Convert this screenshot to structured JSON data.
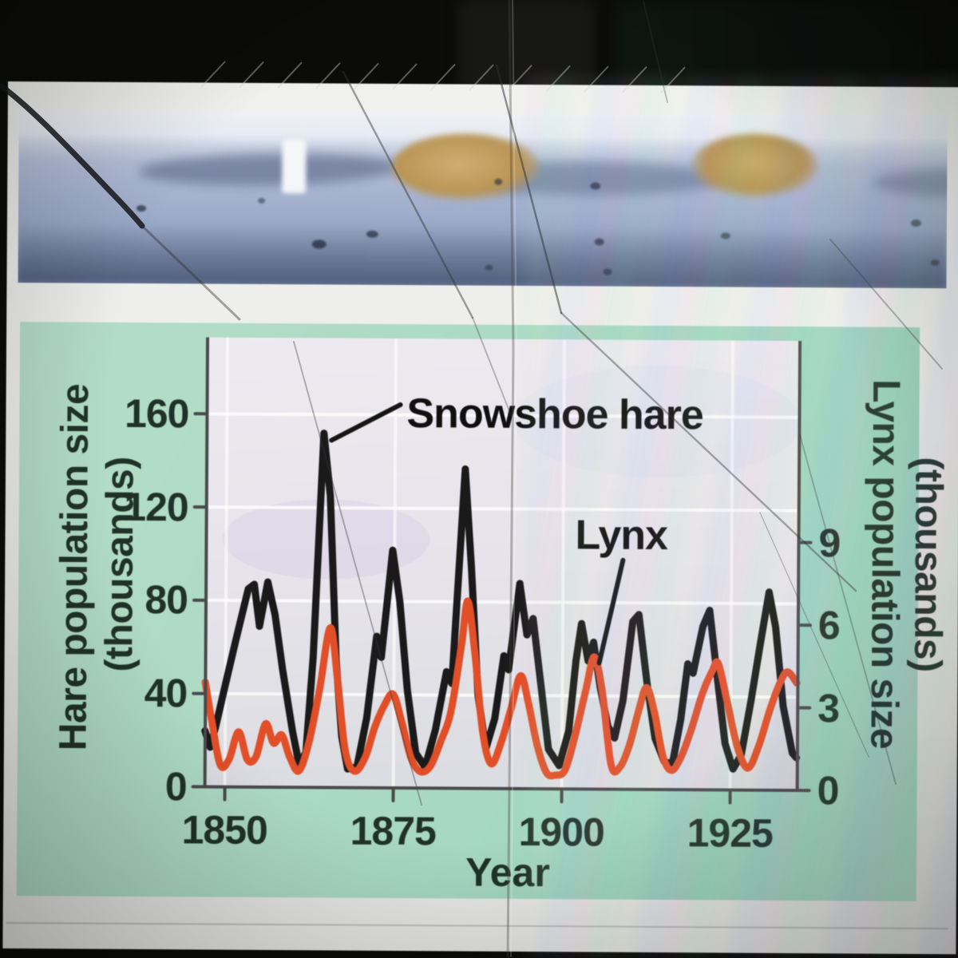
{
  "colors": {
    "background_black": "#0b0b09",
    "page_white": "#f0f1ef",
    "panel_green": "#abdac5",
    "plot_background": "#e7e5eb",
    "grid_white": "#ffffff",
    "axis_line": "#4a4a4c",
    "axis_text_green": "#203228",
    "hare_line_black": "#1a1a1a",
    "lynx_line_orange": "#e14f28",
    "photo_snow_blue": "#a9b6d1"
  },
  "chart_data": {
    "type": "line",
    "title": "",
    "xlabel": "Year",
    "ylabel_left_line1": "Hare population size",
    "ylabel_left_line2": "(thousands)",
    "ylabel_right_line1": "Lynx population size",
    "ylabel_right_line2": "(thousands)",
    "grid": true,
    "legend_position": "annotated-on-plot",
    "x_range": [
      1847,
      1935
    ],
    "x_ticks": [
      1850,
      1875,
      1900,
      1925
    ],
    "y_left_range": [
      0,
      192
    ],
    "y_left_ticks": [
      0,
      40,
      80,
      120,
      160
    ],
    "y_right_range": [
      0,
      16.3
    ],
    "y_right_ticks": [
      0,
      3,
      6,
      9
    ],
    "series": [
      {
        "name": "Snowshoe hare",
        "axis": "left",
        "units": "thousands of hares",
        "color": "#1a1a1a",
        "points": [
          [
            1847.0,
            24
          ],
          [
            1847.8,
            17
          ],
          [
            1848.6,
            26
          ],
          [
            1850.0,
            44
          ],
          [
            1851.5,
            63
          ],
          [
            1853.3,
            85
          ],
          [
            1854.2,
            87
          ],
          [
            1855.0,
            69
          ],
          [
            1856.2,
            88
          ],
          [
            1857.3,
            74
          ],
          [
            1858.5,
            50
          ],
          [
            1860.0,
            24
          ],
          [
            1861.0,
            10
          ],
          [
            1862.0,
            15
          ],
          [
            1863.0,
            56
          ],
          [
            1864.4,
            152
          ],
          [
            1865.4,
            125
          ],
          [
            1866.4,
            55
          ],
          [
            1867.3,
            22
          ],
          [
            1868.2,
            8
          ],
          [
            1869.6,
            9
          ],
          [
            1871.0,
            30
          ],
          [
            1872.4,
            65
          ],
          [
            1873.1,
            56
          ],
          [
            1874.7,
            102
          ],
          [
            1875.8,
            80
          ],
          [
            1877.0,
            42
          ],
          [
            1878.3,
            15
          ],
          [
            1879.7,
            9
          ],
          [
            1881.2,
            25
          ],
          [
            1882.8,
            50
          ],
          [
            1883.6,
            45
          ],
          [
            1885.4,
            137
          ],
          [
            1886.4,
            95
          ],
          [
            1887.5,
            40
          ],
          [
            1888.7,
            17
          ],
          [
            1890.0,
            30
          ],
          [
            1891.3,
            57
          ],
          [
            1892.0,
            51
          ],
          [
            1893.6,
            88
          ],
          [
            1894.7,
            66
          ],
          [
            1895.6,
            73
          ],
          [
            1896.8,
            45
          ],
          [
            1898.0,
            17
          ],
          [
            1899.6,
            10
          ],
          [
            1901.0,
            25
          ],
          [
            1902.0,
            55
          ],
          [
            1902.8,
            71
          ],
          [
            1903.8,
            55
          ],
          [
            1904.6,
            63
          ],
          [
            1905.6,
            44
          ],
          [
            1906.8,
            27
          ],
          [
            1907.8,
            22
          ],
          [
            1909.0,
            38
          ],
          [
            1910.4,
            72
          ],
          [
            1911.3,
            75
          ],
          [
            1912.6,
            45
          ],
          [
            1913.8,
            22
          ],
          [
            1915.2,
            12
          ],
          [
            1916.4,
            11
          ],
          [
            1917.6,
            30
          ],
          [
            1918.6,
            54
          ],
          [
            1919.4,
            50
          ],
          [
            1920.8,
            70
          ],
          [
            1921.8,
            77
          ],
          [
            1923.0,
            48
          ],
          [
            1924.2,
            20
          ],
          [
            1925.4,
            9
          ],
          [
            1926.6,
            15
          ],
          [
            1928.0,
            38
          ],
          [
            1929.3,
            62
          ],
          [
            1930.6,
            85
          ],
          [
            1931.6,
            70
          ],
          [
            1932.8,
            36
          ],
          [
            1934.2,
            16
          ],
          [
            1934.8,
            14
          ]
        ]
      },
      {
        "name": "Lynx",
        "axis": "right",
        "units": "thousands of lynx",
        "color": "#e14f28",
        "points": [
          [
            1847.0,
            3.8
          ],
          [
            1848.0,
            2.4
          ],
          [
            1849.3,
            0.8
          ],
          [
            1850.6,
            1.0
          ],
          [
            1852.0,
            2.0
          ],
          [
            1853.3,
            1.0
          ],
          [
            1854.6,
            1.1
          ],
          [
            1856.0,
            2.3
          ],
          [
            1857.2,
            1.6
          ],
          [
            1858.4,
            1.9
          ],
          [
            1859.6,
            1.1
          ],
          [
            1861.0,
            0.6
          ],
          [
            1862.5,
            1.7
          ],
          [
            1864.0,
            3.6
          ],
          [
            1865.5,
            5.8
          ],
          [
            1866.6,
            4.0
          ],
          [
            1867.8,
            1.4
          ],
          [
            1869.2,
            0.6
          ],
          [
            1870.8,
            1.1
          ],
          [
            1872.2,
            2.2
          ],
          [
            1873.6,
            3.0
          ],
          [
            1874.9,
            3.4
          ],
          [
            1876.2,
            2.4
          ],
          [
            1877.6,
            1.1
          ],
          [
            1879.0,
            0.6
          ],
          [
            1880.5,
            0.8
          ],
          [
            1882.0,
            1.7
          ],
          [
            1883.5,
            2.8
          ],
          [
            1885.0,
            5.2
          ],
          [
            1885.9,
            6.8
          ],
          [
            1887.0,
            4.9
          ],
          [
            1888.2,
            2.1
          ],
          [
            1889.5,
            0.9
          ],
          [
            1891.0,
            1.7
          ],
          [
            1892.4,
            2.9
          ],
          [
            1893.8,
            4.1
          ],
          [
            1895.0,
            3.1
          ],
          [
            1896.3,
            1.6
          ],
          [
            1897.7,
            0.6
          ],
          [
            1899.0,
            0.5
          ],
          [
            1900.5,
            0.7
          ],
          [
            1902.0,
            2.0
          ],
          [
            1903.5,
            3.6
          ],
          [
            1904.7,
            4.8
          ],
          [
            1905.9,
            3.6
          ],
          [
            1907.3,
            0.9
          ],
          [
            1908.6,
            0.8
          ],
          [
            1910.0,
            1.6
          ],
          [
            1911.4,
            2.9
          ],
          [
            1912.5,
            3.7
          ],
          [
            1913.7,
            2.8
          ],
          [
            1915.0,
            1.2
          ],
          [
            1916.3,
            0.7
          ],
          [
            1917.7,
            1.2
          ],
          [
            1919.2,
            2.2
          ],
          [
            1920.8,
            3.5
          ],
          [
            1922.2,
            4.3
          ],
          [
            1923.1,
            4.6
          ],
          [
            1924.4,
            3.3
          ],
          [
            1926.0,
            1.6
          ],
          [
            1927.6,
            0.8
          ],
          [
            1929.2,
            1.6
          ],
          [
            1930.8,
            2.9
          ],
          [
            1932.3,
            3.9
          ],
          [
            1933.4,
            4.3
          ],
          [
            1934.8,
            3.9
          ]
        ]
      }
    ]
  }
}
